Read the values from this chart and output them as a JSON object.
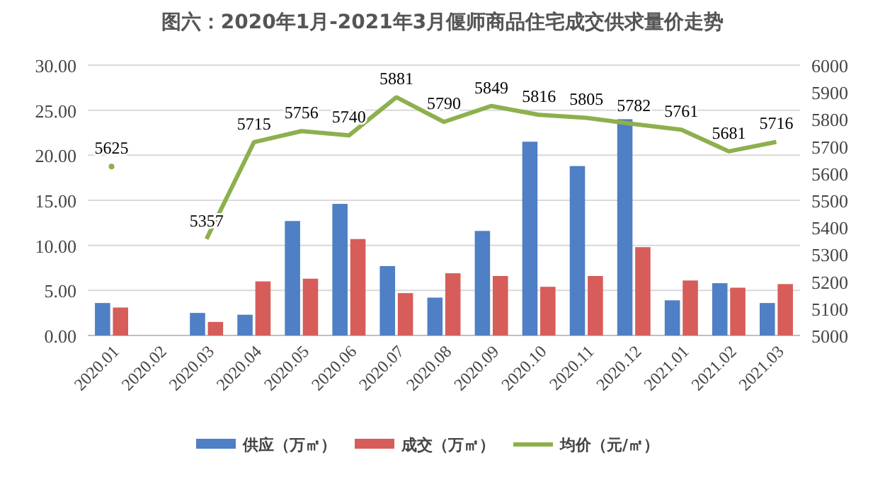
{
  "chart_data": {
    "type": "bar",
    "title": "图六：2020年1月-2021年3月偃师商品住宅成交供求量价走势",
    "categories": [
      "2020.01",
      "2020.02",
      "2020.03",
      "2020.04",
      "2020.05",
      "2020.06",
      "2020.07",
      "2020.08",
      "2020.09",
      "2020.10",
      "2020.11",
      "2020.12",
      "2021.01",
      "2021.02",
      "2021.03"
    ],
    "series": [
      {
        "name": "供应（万㎡）",
        "color": "#4f7fc4",
        "values": [
          3.6,
          0,
          2.5,
          2.3,
          12.7,
          14.6,
          7.7,
          4.2,
          11.6,
          21.5,
          18.8,
          24.0,
          3.9,
          5.8,
          3.6
        ]
      },
      {
        "name": "成交（万㎡）",
        "color": "#d65d5a",
        "values": [
          3.1,
          0,
          1.5,
          6.0,
          6.3,
          10.7,
          4.7,
          6.9,
          6.6,
          5.4,
          6.6,
          9.8,
          6.1,
          5.3,
          5.7
        ]
      },
      {
        "name": "均价（元/㎡）",
        "type": "line",
        "axis": "y2",
        "color": "#8db04e",
        "data_labels": true,
        "values": [
          5625,
          null,
          5357,
          5715,
          5756,
          5740,
          5881,
          5790,
          5849,
          5816,
          5805,
          5782,
          5761,
          5681,
          5716
        ]
      }
    ],
    "ylim": [
      0,
      30
    ],
    "yticks": [
      {
        "value": 0,
        "label": "0.00"
      },
      {
        "value": 5,
        "label": "5.00"
      },
      {
        "value": 10,
        "label": "10.00"
      },
      {
        "value": 15,
        "label": "15.00"
      },
      {
        "value": 20,
        "label": "20.00"
      },
      {
        "value": 25,
        "label": "25.00"
      },
      {
        "value": 30,
        "label": "30.00"
      }
    ],
    "y2lim": [
      5000,
      6000
    ],
    "y2ticks": [
      5000,
      5100,
      5200,
      5300,
      5400,
      5500,
      5600,
      5700,
      5800,
      5900,
      6000
    ],
    "grid": "y",
    "legend": "bottom"
  }
}
